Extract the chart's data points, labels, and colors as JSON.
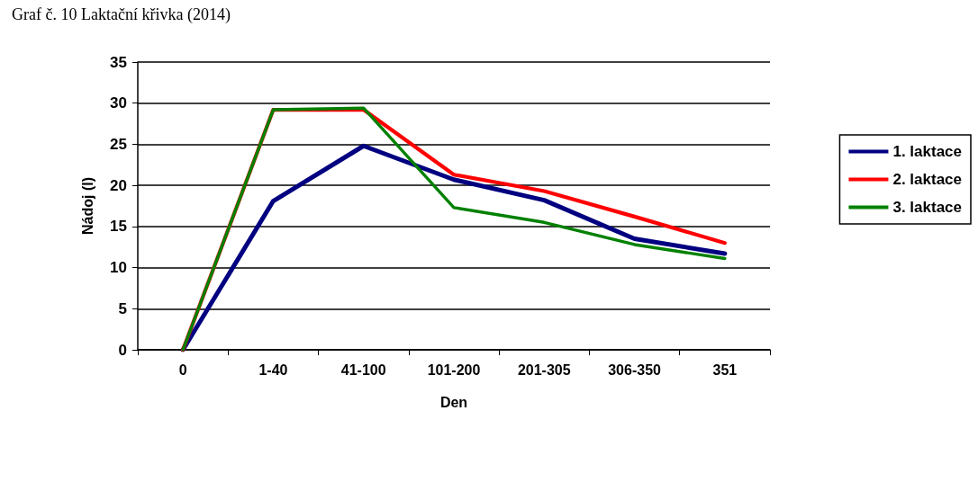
{
  "chart_data": {
    "type": "line",
    "title": "Graf č. 10 Laktační křivka (2014)",
    "xlabel": "Den",
    "ylabel": "Nádoj (l)",
    "categories": [
      "0",
      "1-40",
      "41-100",
      "101-200",
      "201-305",
      "306-350",
      "351"
    ],
    "series": [
      {
        "name": "1. laktace",
        "color": "#000080",
        "values": [
          0,
          18.1,
          24.8,
          20.7,
          18.2,
          13.5,
          11.7
        ]
      },
      {
        "name": "2. laktace",
        "color": "#ff0000",
        "values": [
          0,
          29.2,
          29.2,
          21.3,
          19.3,
          16.2,
          13
        ]
      },
      {
        "name": "3. laktace",
        "color": "#008000",
        "values": [
          0,
          29.2,
          29.4,
          17.3,
          15.5,
          12.8,
          11.1
        ]
      }
    ],
    "ylim": [
      0,
      35
    ],
    "yticks": [
      0,
      5,
      10,
      15,
      20,
      25,
      30,
      35
    ],
    "grid": "y",
    "legend": "right",
    "marker": "none",
    "line_style": "solid"
  }
}
